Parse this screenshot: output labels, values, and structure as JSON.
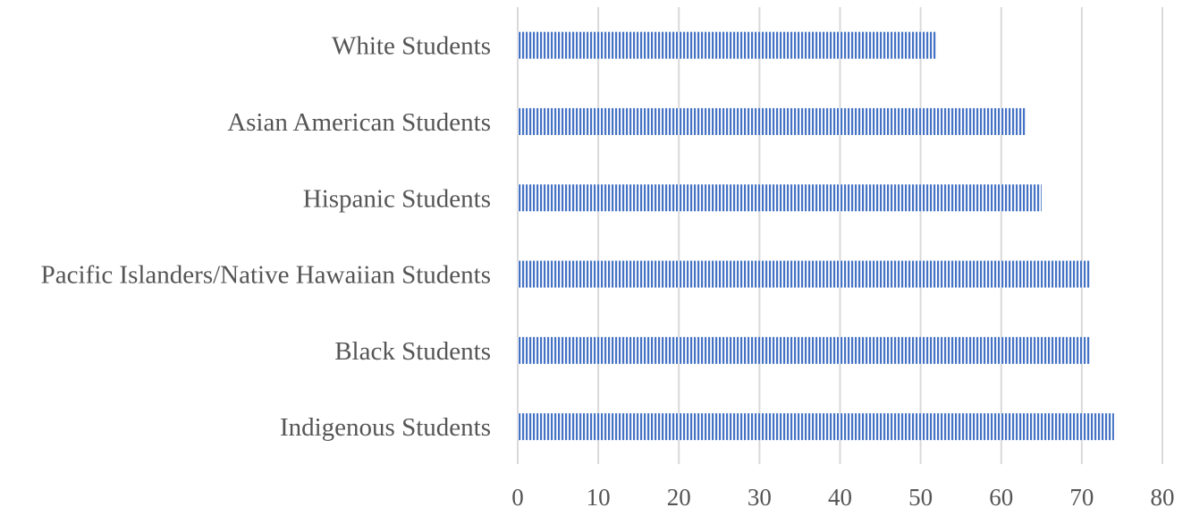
{
  "chart_data": {
    "type": "bar",
    "orientation": "horizontal",
    "categories": [
      "White Students",
      "Asian American Students",
      "Hispanic Students",
      "Pacific Islanders/Native Hawaiian Students",
      "Black Students",
      "Indigenous Students"
    ],
    "values": [
      52,
      63,
      65,
      71,
      71,
      74
    ],
    "title": "",
    "xlabel": "",
    "ylabel": "",
    "xlim": [
      0,
      80
    ],
    "xticks": [
      0,
      10,
      20,
      30,
      40,
      50,
      60,
      70,
      80
    ],
    "grid": "vertical",
    "legend": "none",
    "bar_color": "#4472c4",
    "bar_pattern": "vertical-stripes"
  }
}
